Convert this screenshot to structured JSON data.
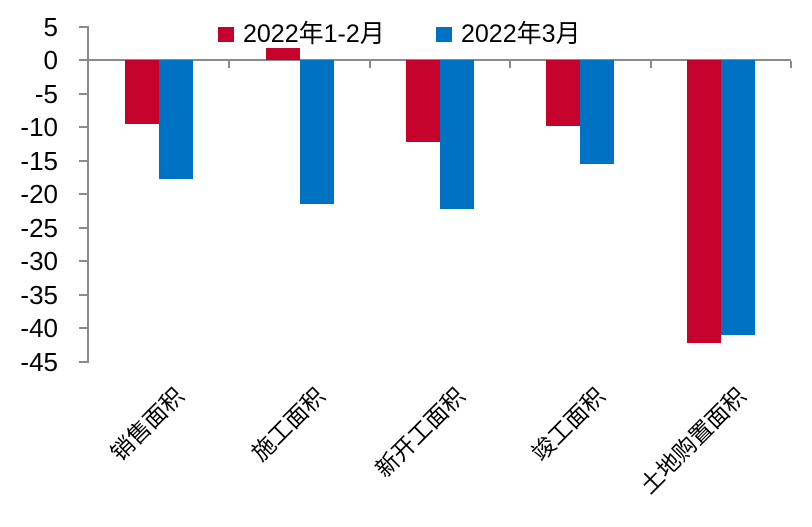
{
  "chart_data": {
    "type": "bar",
    "categories": [
      "销售面积",
      "施工面积",
      "新开工面积",
      "竣工面积",
      "土地购置面积"
    ],
    "series": [
      {
        "name": "2022年1-2月",
        "color": "#c5022c",
        "values": [
          -9.6,
          1.8,
          -12.2,
          -9.8,
          -42.3
        ]
      },
      {
        "name": "2022年3月",
        "color": "#0072c4",
        "values": [
          -17.7,
          -21.5,
          -22.3,
          -15.5,
          -41.0
        ]
      }
    ],
    "title": "",
    "xlabel": "",
    "ylabel": "",
    "ylim": [
      -45,
      5
    ],
    "yticks": [
      5,
      0,
      -5,
      -10,
      -15,
      -20,
      -25,
      -30,
      -35,
      -40,
      -45
    ],
    "grid": false,
    "legend_position": "top-center",
    "axis_color": "#8b8b8b",
    "unit": "%"
  }
}
